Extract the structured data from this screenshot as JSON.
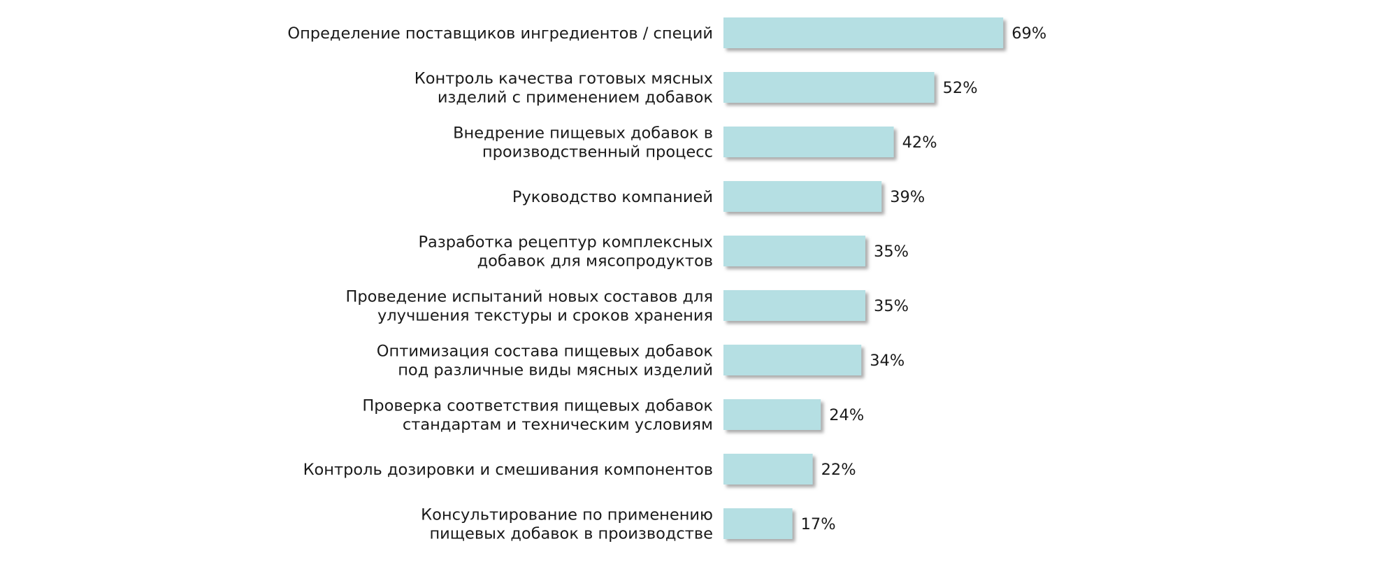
{
  "chart_data": {
    "type": "bar",
    "orientation": "horizontal",
    "categories": [
      [
        "Определение поставщиков ингредиентов / специй"
      ],
      [
        "Контроль качества готовых мясных",
        "изделий с применением добавок"
      ],
      [
        "Внедрение пищевых добавок в",
        "производственный процесс"
      ],
      [
        "Руководство компанией"
      ],
      [
        "Разработка рецептур комплексных",
        "добавок для мясопродуктов"
      ],
      [
        "Проведение испытаний новых составов для",
        "улучшения текстуры и сроков хранения"
      ],
      [
        "Оптимизация состава пищевых добавок",
        "под различные виды мясных изделий"
      ],
      [
        "Проверка соответствия пищевых добавок",
        "стандартам и техническим условиям"
      ],
      [
        "Контроль дозировки и смешивания компонентов"
      ],
      [
        "Консультирование по применению",
        "пищевых добавок в производстве"
      ]
    ],
    "values": [
      69,
      52,
      42,
      39,
      35,
      35,
      34,
      24,
      22,
      17
    ],
    "value_labels": [
      "69%",
      "52%",
      "42%",
      "39%",
      "35%",
      "35%",
      "34%",
      "24%",
      "22%",
      "17%"
    ],
    "unit": "%",
    "bar_color": "#b5dfe3",
    "shadow_color": "#9a9a9a",
    "grid": false,
    "legend": "none"
  }
}
